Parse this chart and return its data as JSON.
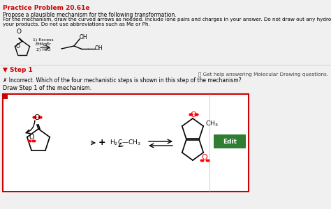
{
  "title": "Practice Problem 20.61e",
  "title_color": "#cc0000",
  "bg_color": "#f0f0f0",
  "line1": "Propose a plausible mechanism for the following transformation.",
  "line2": "For the mechanism, draw the curved arrows as needed. Include lone pairs and charges in your answer. Do not draw out any hydrogen explicitly in",
  "line3": "your products. Do not use abbreviations such as Me or Ph.",
  "step1_label": "▼ Step 1",
  "step1_color": "#cc0000",
  "help_text": "ⓘ Get help answering Molecular Drawing questions.",
  "incorrect_text": "✗ Incorrect. Which of the four mechanistic steps is shown in this step of the mechanism?",
  "draw_text": "Draw Step 1 of the mechanism.",
  "edit_btn_color": "#2e7d32",
  "edit_btn_text": "Edit",
  "box_border_color": "#cc0000",
  "reagents_line1": "1) Excess",
  "reagents_line2": "EtMgBr",
  "reagents_line3": "2) H₂O"
}
